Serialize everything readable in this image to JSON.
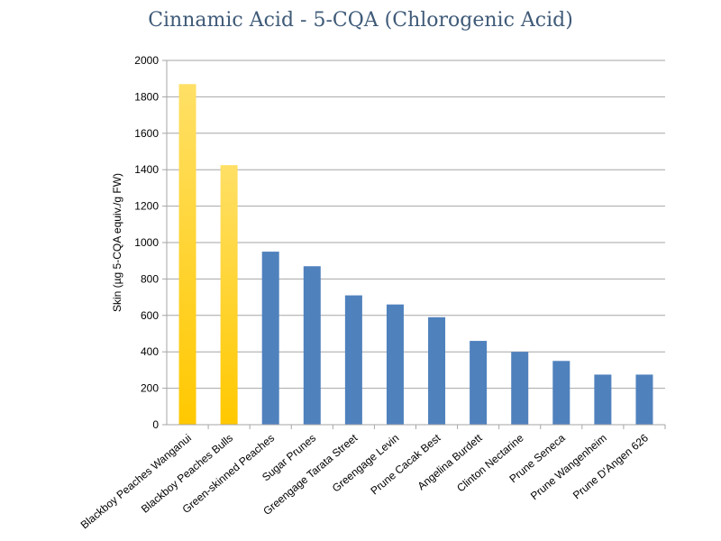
{
  "chart_data": {
    "type": "bar",
    "title": "Cinnamic Acid - 5-CQA (Chlorogenic Acid)",
    "xlabel": "",
    "ylabel": "Skin (µg 5-CQA equiv./g FW)",
    "ylim": [
      0,
      2000
    ],
    "yticks": [
      0,
      200,
      400,
      600,
      800,
      1000,
      1200,
      1400,
      1600,
      1800,
      2000
    ],
    "grid": true,
    "categories": [
      "Blackboy Peaches Wanganui",
      "Blackboy Peaches Bulls",
      "Green-skinned Peaches",
      "Sugar Prunes",
      "Greengage Tarata Street",
      "Greengage Levin",
      "Prune Cacak Best",
      "Angelina Burdett",
      "Clinton Nectarine",
      "Prune Seneca",
      "Prune Wangenheim",
      "Prune D'Angen 626"
    ],
    "values": [
      1870,
      1425,
      950,
      870,
      710,
      660,
      590,
      460,
      400,
      350,
      275,
      275
    ],
    "bar_colors": [
      "#ffc000",
      "#ffc000",
      "#4f81bd",
      "#4f81bd",
      "#4f81bd",
      "#4f81bd",
      "#4f81bd",
      "#4f81bd",
      "#4f81bd",
      "#4f81bd",
      "#4f81bd",
      "#4f81bd"
    ],
    "colors": {
      "highlight_top": "#ffe066",
      "highlight_bottom": "#ffc800",
      "bar": "#4f81bd",
      "title": "#3f5a78"
    }
  }
}
